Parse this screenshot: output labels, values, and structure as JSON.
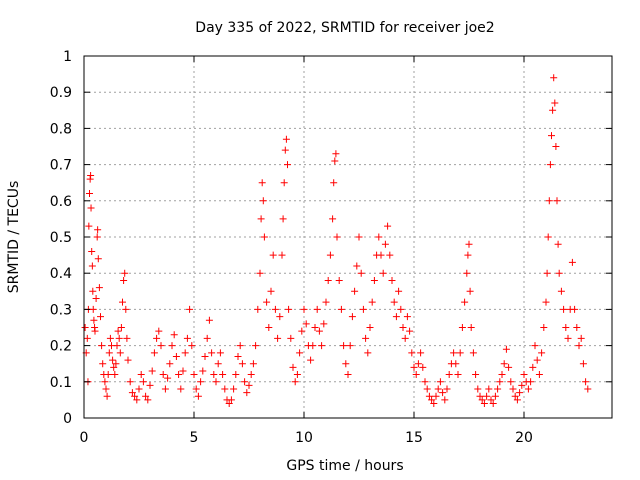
{
  "chart_data": {
    "type": "scatter",
    "title": "Day 335 of 2022, SRMTID for receiver joe2",
    "xlabel": "GPS time / hours",
    "ylabel": "SRMTID / TECUs",
    "xlim": [
      0,
      24
    ],
    "ylim": [
      0,
      1
    ],
    "xticks": [
      0,
      5,
      10,
      15,
      20
    ],
    "xtick_labels": [
      "0",
      "5",
      "10",
      "15",
      "20"
    ],
    "yticks": [
      0,
      0.1,
      0.2,
      0.3,
      0.4,
      0.5,
      0.6,
      0.7,
      0.8,
      0.9,
      1
    ],
    "ytick_labels": [
      "0",
      "0.1",
      "0.2",
      "0.3",
      "0.4",
      "0.5",
      "0.6",
      "0.7",
      "0.8",
      "0.9",
      "1"
    ],
    "grid": true,
    "marker": "+",
    "color": "#ff0000",
    "series": [
      {
        "name": "SRMTID",
        "points": [
          [
            0.05,
            0.25
          ],
          [
            0.1,
            0.18
          ],
          [
            0.15,
            0.22
          ],
          [
            0.18,
            0.1
          ],
          [
            0.2,
            0.3
          ],
          [
            0.22,
            0.53
          ],
          [
            0.25,
            0.62
          ],
          [
            0.28,
            0.66
          ],
          [
            0.3,
            0.67
          ],
          [
            0.32,
            0.58
          ],
          [
            0.35,
            0.46
          ],
          [
            0.38,
            0.42
          ],
          [
            0.4,
            0.35
          ],
          [
            0.42,
            0.3
          ],
          [
            0.45,
            0.27
          ],
          [
            0.48,
            0.25
          ],
          [
            0.5,
            0.24
          ],
          [
            0.55,
            0.33
          ],
          [
            0.6,
            0.5
          ],
          [
            0.62,
            0.52
          ],
          [
            0.65,
            0.44
          ],
          [
            0.7,
            0.36
          ],
          [
            0.75,
            0.28
          ],
          [
            0.8,
            0.2
          ],
          [
            0.85,
            0.15
          ],
          [
            0.9,
            0.12
          ],
          [
            0.95,
            0.1
          ],
          [
            1.0,
            0.08
          ],
          [
            1.05,
            0.06
          ],
          [
            1.1,
            0.12
          ],
          [
            1.15,
            0.18
          ],
          [
            1.2,
            0.22
          ],
          [
            1.25,
            0.2
          ],
          [
            1.3,
            0.16
          ],
          [
            1.35,
            0.14
          ],
          [
            1.4,
            0.12
          ],
          [
            1.45,
            0.15
          ],
          [
            1.5,
            0.2
          ],
          [
            1.55,
            0.24
          ],
          [
            1.6,
            0.22
          ],
          [
            1.65,
            0.18
          ],
          [
            1.7,
            0.25
          ],
          [
            1.75,
            0.32
          ],
          [
            1.8,
            0.38
          ],
          [
            1.85,
            0.4
          ],
          [
            1.9,
            0.3
          ],
          [
            1.95,
            0.22
          ],
          [
            2.0,
            0.16
          ],
          [
            2.1,
            0.1
          ],
          [
            2.2,
            0.07
          ],
          [
            2.3,
            0.06
          ],
          [
            2.4,
            0.05
          ],
          [
            2.5,
            0.08
          ],
          [
            2.6,
            0.12
          ],
          [
            2.7,
            0.1
          ],
          [
            2.8,
            0.06
          ],
          [
            2.9,
            0.05
          ],
          [
            3.0,
            0.09
          ],
          [
            3.1,
            0.13
          ],
          [
            3.2,
            0.18
          ],
          [
            3.3,
            0.22
          ],
          [
            3.4,
            0.24
          ],
          [
            3.5,
            0.2
          ],
          [
            3.6,
            0.12
          ],
          [
            3.7,
            0.08
          ],
          [
            3.8,
            0.11
          ],
          [
            3.9,
            0.15
          ],
          [
            4.0,
            0.2
          ],
          [
            4.1,
            0.23
          ],
          [
            4.2,
            0.17
          ],
          [
            4.3,
            0.12
          ],
          [
            4.4,
            0.08
          ],
          [
            4.5,
            0.13
          ],
          [
            4.6,
            0.18
          ],
          [
            4.7,
            0.22
          ],
          [
            4.8,
            0.3
          ],
          [
            4.9,
            0.2
          ],
          [
            5.0,
            0.12
          ],
          [
            5.1,
            0.08
          ],
          [
            5.2,
            0.06
          ],
          [
            5.3,
            0.1
          ],
          [
            5.4,
            0.13
          ],
          [
            5.5,
            0.17
          ],
          [
            5.6,
            0.22
          ],
          [
            5.7,
            0.27
          ],
          [
            5.8,
            0.18
          ],
          [
            5.9,
            0.12
          ],
          [
            6.0,
            0.1
          ],
          [
            6.1,
            0.15
          ],
          [
            6.2,
            0.18
          ],
          [
            6.3,
            0.12
          ],
          [
            6.4,
            0.08
          ],
          [
            6.5,
            0.05
          ],
          [
            6.6,
            0.04
          ],
          [
            6.7,
            0.05
          ],
          [
            6.8,
            0.08
          ],
          [
            6.9,
            0.12
          ],
          [
            7.0,
            0.17
          ],
          [
            7.1,
            0.2
          ],
          [
            7.2,
            0.15
          ],
          [
            7.3,
            0.1
          ],
          [
            7.4,
            0.07
          ],
          [
            7.5,
            0.09
          ],
          [
            7.6,
            0.12
          ],
          [
            7.7,
            0.15
          ],
          [
            7.8,
            0.2
          ],
          [
            7.9,
            0.3
          ],
          [
            8.0,
            0.4
          ],
          [
            8.05,
            0.55
          ],
          [
            8.1,
            0.65
          ],
          [
            8.15,
            0.6
          ],
          [
            8.2,
            0.5
          ],
          [
            8.3,
            0.32
          ],
          [
            8.4,
            0.25
          ],
          [
            8.5,
            0.35
          ],
          [
            8.6,
            0.45
          ],
          [
            8.7,
            0.3
          ],
          [
            8.8,
            0.22
          ],
          [
            8.9,
            0.28
          ],
          [
            9.0,
            0.45
          ],
          [
            9.05,
            0.55
          ],
          [
            9.1,
            0.65
          ],
          [
            9.15,
            0.74
          ],
          [
            9.2,
            0.77
          ],
          [
            9.25,
            0.7
          ],
          [
            9.3,
            0.3
          ],
          [
            9.4,
            0.22
          ],
          [
            9.5,
            0.14
          ],
          [
            9.6,
            0.1
          ],
          [
            9.7,
            0.12
          ],
          [
            9.8,
            0.18
          ],
          [
            9.9,
            0.24
          ],
          [
            10.0,
            0.3
          ],
          [
            10.1,
            0.26
          ],
          [
            10.2,
            0.2
          ],
          [
            10.3,
            0.16
          ],
          [
            10.4,
            0.2
          ],
          [
            10.5,
            0.25
          ],
          [
            10.6,
            0.3
          ],
          [
            10.7,
            0.24
          ],
          [
            10.8,
            0.2
          ],
          [
            10.9,
            0.26
          ],
          [
            11.0,
            0.32
          ],
          [
            11.1,
            0.38
          ],
          [
            11.2,
            0.45
          ],
          [
            11.3,
            0.55
          ],
          [
            11.35,
            0.65
          ],
          [
            11.4,
            0.71
          ],
          [
            11.45,
            0.73
          ],
          [
            11.5,
            0.5
          ],
          [
            11.6,
            0.38
          ],
          [
            11.7,
            0.3
          ],
          [
            11.8,
            0.2
          ],
          [
            11.9,
            0.15
          ],
          [
            12.0,
            0.12
          ],
          [
            12.1,
            0.2
          ],
          [
            12.2,
            0.28
          ],
          [
            12.3,
            0.35
          ],
          [
            12.4,
            0.42
          ],
          [
            12.5,
            0.5
          ],
          [
            12.6,
            0.4
          ],
          [
            12.7,
            0.3
          ],
          [
            12.8,
            0.22
          ],
          [
            12.9,
            0.18
          ],
          [
            13.0,
            0.25
          ],
          [
            13.1,
            0.32
          ],
          [
            13.2,
            0.38
          ],
          [
            13.3,
            0.45
          ],
          [
            13.4,
            0.5
          ],
          [
            13.5,
            0.45
          ],
          [
            13.6,
            0.4
          ],
          [
            13.7,
            0.48
          ],
          [
            13.8,
            0.53
          ],
          [
            13.9,
            0.45
          ],
          [
            14.0,
            0.38
          ],
          [
            14.1,
            0.32
          ],
          [
            14.2,
            0.28
          ],
          [
            14.3,
            0.35
          ],
          [
            14.4,
            0.3
          ],
          [
            14.5,
            0.25
          ],
          [
            14.6,
            0.22
          ],
          [
            14.7,
            0.28
          ],
          [
            14.8,
            0.24
          ],
          [
            14.9,
            0.18
          ],
          [
            15.0,
            0.14
          ],
          [
            15.1,
            0.12
          ],
          [
            15.2,
            0.15
          ],
          [
            15.3,
            0.18
          ],
          [
            15.4,
            0.14
          ],
          [
            15.5,
            0.1
          ],
          [
            15.6,
            0.08
          ],
          [
            15.7,
            0.06
          ],
          [
            15.8,
            0.05
          ],
          [
            15.9,
            0.04
          ],
          [
            16.0,
            0.06
          ],
          [
            16.1,
            0.08
          ],
          [
            16.2,
            0.1
          ],
          [
            16.3,
            0.07
          ],
          [
            16.4,
            0.05
          ],
          [
            16.5,
            0.08
          ],
          [
            16.6,
            0.12
          ],
          [
            16.7,
            0.15
          ],
          [
            16.8,
            0.18
          ],
          [
            16.9,
            0.15
          ],
          [
            17.0,
            0.12
          ],
          [
            17.1,
            0.18
          ],
          [
            17.2,
            0.25
          ],
          [
            17.3,
            0.32
          ],
          [
            17.4,
            0.4
          ],
          [
            17.45,
            0.45
          ],
          [
            17.5,
            0.48
          ],
          [
            17.55,
            0.35
          ],
          [
            17.6,
            0.25
          ],
          [
            17.7,
            0.18
          ],
          [
            17.8,
            0.12
          ],
          [
            17.9,
            0.08
          ],
          [
            18.0,
            0.06
          ],
          [
            18.1,
            0.05
          ],
          [
            18.2,
            0.04
          ],
          [
            18.3,
            0.06
          ],
          [
            18.4,
            0.08
          ],
          [
            18.5,
            0.05
          ],
          [
            18.6,
            0.04
          ],
          [
            18.7,
            0.06
          ],
          [
            18.8,
            0.08
          ],
          [
            18.9,
            0.1
          ],
          [
            19.0,
            0.12
          ],
          [
            19.1,
            0.15
          ],
          [
            19.2,
            0.19
          ],
          [
            19.3,
            0.14
          ],
          [
            19.4,
            0.1
          ],
          [
            19.5,
            0.08
          ],
          [
            19.6,
            0.06
          ],
          [
            19.7,
            0.05
          ],
          [
            19.8,
            0.07
          ],
          [
            19.9,
            0.09
          ],
          [
            20.0,
            0.12
          ],
          [
            20.1,
            0.1
          ],
          [
            20.2,
            0.08
          ],
          [
            20.3,
            0.1
          ],
          [
            20.4,
            0.14
          ],
          [
            20.5,
            0.2
          ],
          [
            20.6,
            0.16
          ],
          [
            20.7,
            0.12
          ],
          [
            20.8,
            0.18
          ],
          [
            20.9,
            0.25
          ],
          [
            21.0,
            0.32
          ],
          [
            21.05,
            0.4
          ],
          [
            21.1,
            0.5
          ],
          [
            21.15,
            0.6
          ],
          [
            21.2,
            0.7
          ],
          [
            21.25,
            0.78
          ],
          [
            21.3,
            0.85
          ],
          [
            21.35,
            0.94
          ],
          [
            21.4,
            0.87
          ],
          [
            21.45,
            0.75
          ],
          [
            21.5,
            0.6
          ],
          [
            21.55,
            0.48
          ],
          [
            21.6,
            0.4
          ],
          [
            21.7,
            0.35
          ],
          [
            21.8,
            0.3
          ],
          [
            21.9,
            0.25
          ],
          [
            22.0,
            0.22
          ],
          [
            22.1,
            0.3
          ],
          [
            22.2,
            0.43
          ],
          [
            22.3,
            0.3
          ],
          [
            22.4,
            0.25
          ],
          [
            22.5,
            0.2
          ],
          [
            22.6,
            0.22
          ],
          [
            22.7,
            0.15
          ],
          [
            22.8,
            0.1
          ],
          [
            22.9,
            0.08
          ]
        ]
      }
    ]
  }
}
